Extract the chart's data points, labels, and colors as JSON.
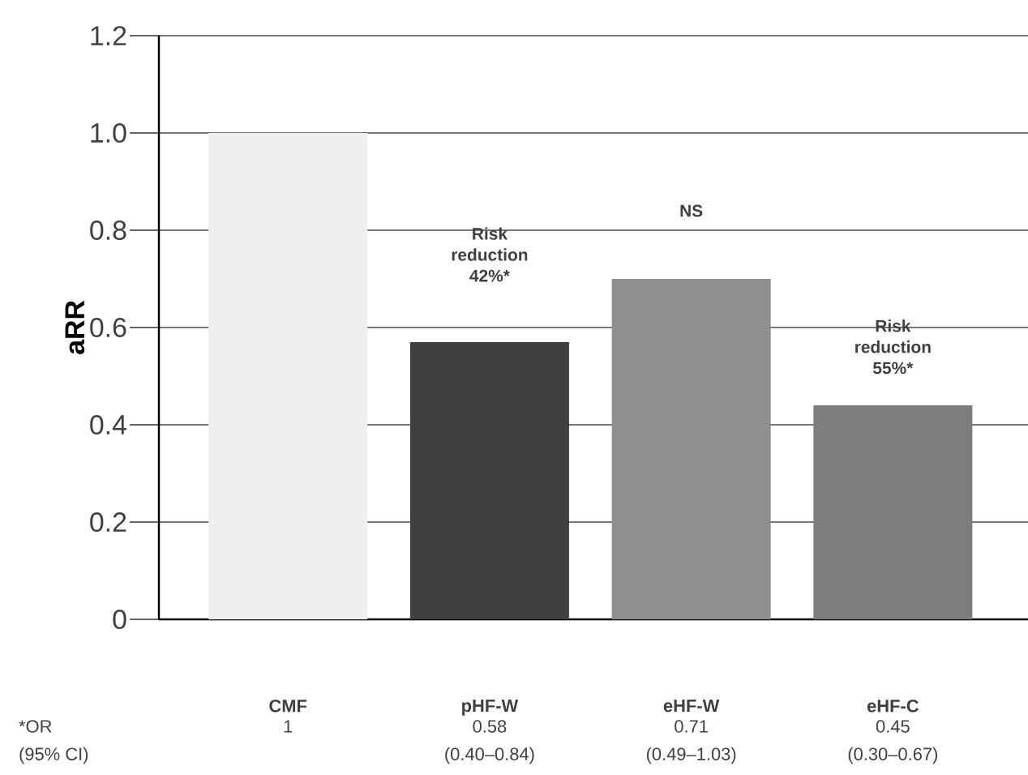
{
  "chart_data": {
    "type": "bar",
    "ylabel": "aRR",
    "categories": [
      "CMF",
      "pHF-W",
      "eHF-W",
      "eHF-C"
    ],
    "values": [
      1.0,
      0.57,
      0.7,
      0.44
    ],
    "colors": [
      "#efefef",
      "#404040",
      "#8f8f8f",
      "#7d7d7d"
    ],
    "ylim": [
      0,
      1.2
    ],
    "yticks": [
      0,
      {
        "value": 0.2,
        "label": "0.2"
      },
      {
        "value": 0.4,
        "label": "0.4"
      },
      {
        "value": 0.6,
        "label": "0.6"
      },
      {
        "value": 0.8,
        "label": "0.8"
      },
      {
        "value": 1.0,
        "label": "1.0"
      },
      {
        "value": 1.2,
        "label": "1.2"
      }
    ],
    "grid": "y",
    "annotations": [
      "Risk reduction 42%*",
      "NS",
      "Risk reduction 55%*",
      "*OR",
      "(95% CI)",
      "1",
      "0.58",
      "(0.40–0.84)",
      "0.71",
      "(0.49–1.03)",
      "0.45",
      "(0.30–0.67)"
    ]
  }
}
